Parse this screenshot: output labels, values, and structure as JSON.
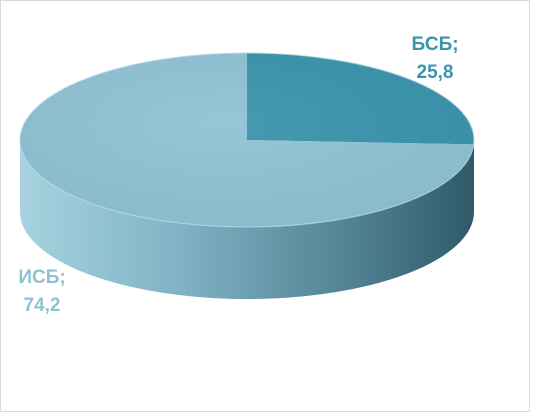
{
  "chart_data": {
    "type": "pie",
    "title": "",
    "slices": [
      {
        "label": "БСБ",
        "value": 25.8,
        "color": "#3a94ad"
      },
      {
        "label": "ИСБ",
        "value": 74.2,
        "color": "#8fc2d4"
      }
    ],
    "label_lines": [
      {
        "name": "БСБ;",
        "value": "25,8",
        "color": "#3a94ad"
      },
      {
        "name": "ИСБ;",
        "value": "74,2",
        "color": "#8fc2d4"
      }
    ],
    "style": "3d",
    "legend": "none"
  }
}
